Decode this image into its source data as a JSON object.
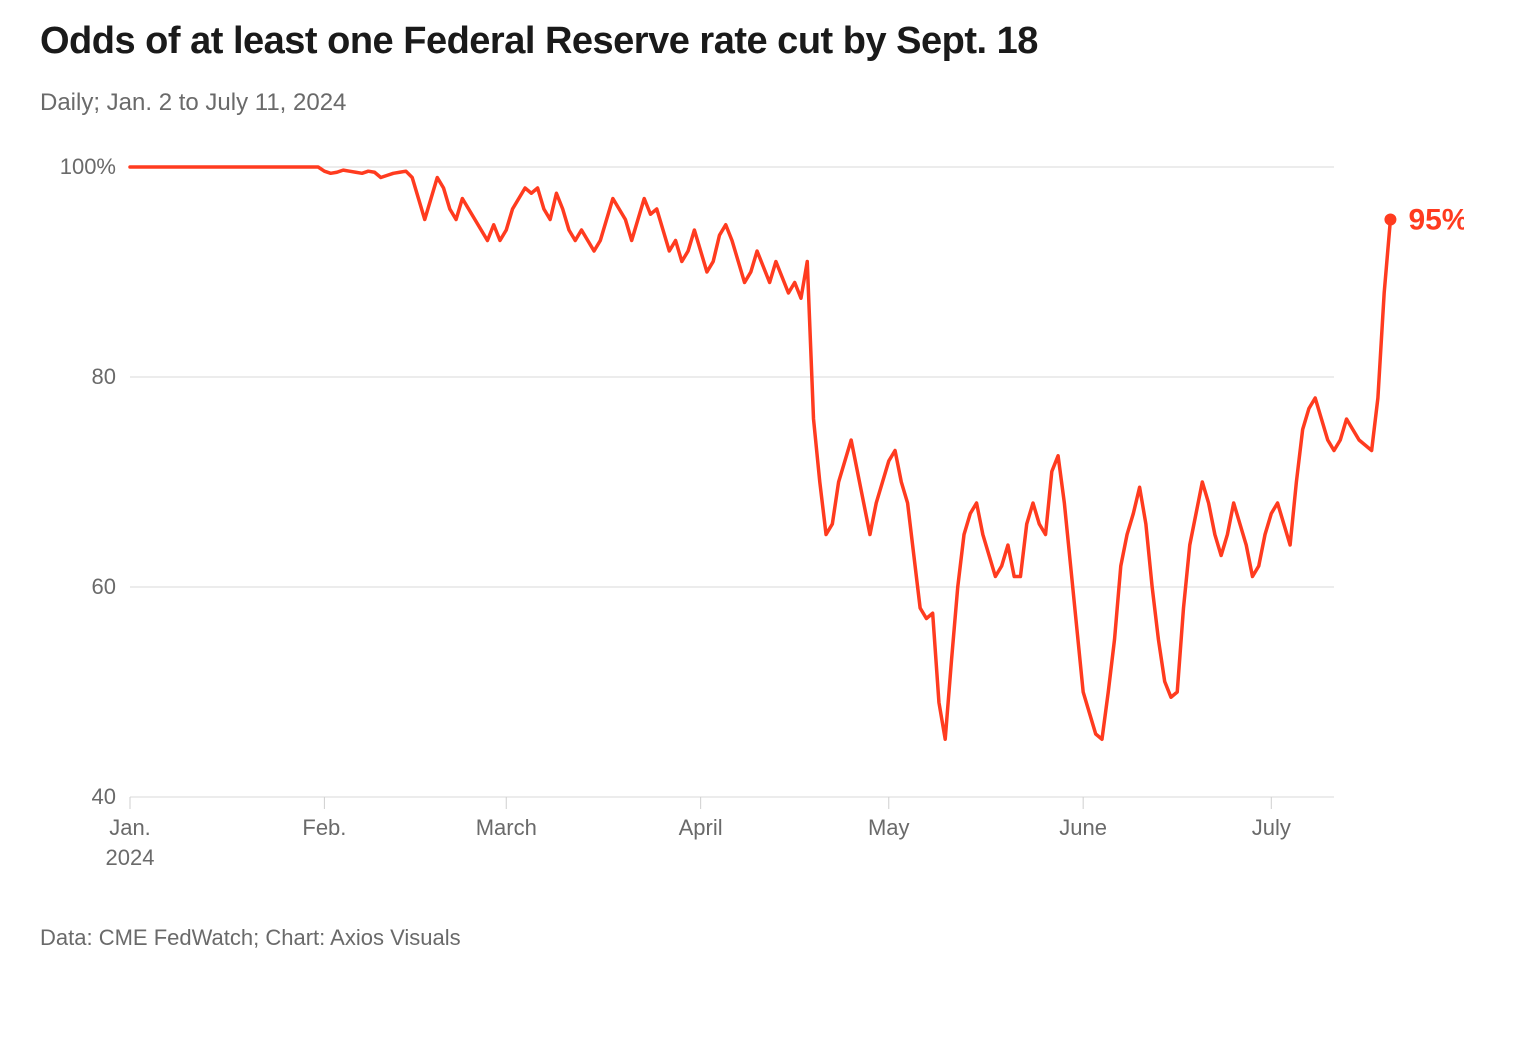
{
  "title": "Odds of at least one Federal Reserve rate cut by Sept. 18",
  "subtitle": "Daily; Jan. 2 to July 11, 2024",
  "footer": "Data: CME FedWatch; Chart: Axios Visuals",
  "chart": {
    "type": "line",
    "background_color": "#ffffff",
    "grid_color": "#d9d9d9",
    "axis_color": "#d0d0d0",
    "tick_color": "#cfcfcf",
    "line_color": "#ff3b1f",
    "line_width": 3.5,
    "text_color": "#6a6a6a",
    "title_color": "#1a1a1a",
    "end_marker_radius": 6,
    "end_label": "95%",
    "end_label_color": "#ff3b1f",
    "ylim": [
      40,
      100
    ],
    "y_ticks": [
      40,
      60,
      80,
      100
    ],
    "y_tick_suffix_first": "%",
    "x_domain": [
      0,
      192
    ],
    "x_ticks": [
      {
        "pos": 0,
        "label": "Jan.",
        "sub": "2024"
      },
      {
        "pos": 31,
        "label": "Feb."
      },
      {
        "pos": 60,
        "label": "March"
      },
      {
        "pos": 91,
        "label": "April"
      },
      {
        "pos": 121,
        "label": "May"
      },
      {
        "pos": 152,
        "label": "June"
      },
      {
        "pos": 182,
        "label": "July"
      }
    ],
    "series": [
      100,
      100,
      100,
      100,
      100,
      100,
      100,
      100,
      100,
      100,
      100,
      100,
      100,
      100,
      100,
      100,
      100,
      100,
      100,
      100,
      100,
      100,
      100,
      100,
      100,
      100,
      100,
      100,
      100,
      100,
      100,
      99.6,
      99.4,
      99.5,
      99.7,
      99.6,
      99.5,
      99.4,
      99.6,
      99.5,
      99.0,
      99.2,
      99.4,
      99.5,
      99.6,
      99.0,
      97.0,
      95.0,
      97.0,
      99.0,
      98.0,
      96.0,
      95.0,
      97.0,
      96.0,
      95.0,
      94.0,
      93.0,
      94.5,
      93.0,
      94.0,
      96.0,
      97.0,
      98.0,
      97.5,
      98.0,
      96.0,
      95.0,
      97.5,
      96.0,
      94.0,
      93.0,
      94.0,
      93.0,
      92.0,
      93.0,
      95.0,
      97.0,
      96.0,
      95.0,
      93.0,
      95.0,
      97.0,
      95.5,
      96.0,
      94.0,
      92.0,
      93.0,
      91.0,
      92.0,
      94.0,
      92.0,
      90.0,
      91.0,
      93.5,
      94.5,
      93.0,
      91.0,
      89.0,
      90.0,
      92.0,
      90.5,
      89.0,
      91.0,
      89.5,
      88.0,
      89.0,
      87.5,
      91.0,
      76.0,
      70.0,
      65.0,
      66.0,
      70.0,
      72.0,
      74.0,
      71.0,
      68.0,
      65.0,
      68.0,
      70.0,
      72.0,
      73.0,
      70.0,
      68.0,
      63.0,
      58.0,
      57.0,
      57.5,
      49.0,
      45.5,
      53.0,
      60.0,
      65.0,
      67.0,
      68.0,
      65.0,
      63.0,
      61.0,
      62.0,
      64.0,
      61.0,
      61.0,
      66.0,
      68.0,
      66.0,
      65.0,
      71.0,
      72.5,
      68.0,
      62.0,
      56.0,
      50.0,
      48.0,
      46.0,
      45.5,
      50.0,
      55.0,
      62.0,
      65.0,
      67.0,
      69.5,
      66.0,
      60.0,
      55.0,
      51.0,
      49.5,
      50.0,
      58.0,
      64.0,
      67.0,
      70.0,
      68.0,
      65.0,
      63.0,
      65.0,
      68.0,
      66.0,
      64.0,
      61.0,
      62.0,
      65.0,
      67.0,
      68.0,
      66.0,
      64.0,
      70.0,
      75.0,
      77.0,
      78.0,
      76.0,
      74.0,
      73.0,
      74.0,
      76.0,
      75.0,
      74.0,
      73.5,
      73.0,
      78.0,
      88.0,
      95.0
    ]
  }
}
